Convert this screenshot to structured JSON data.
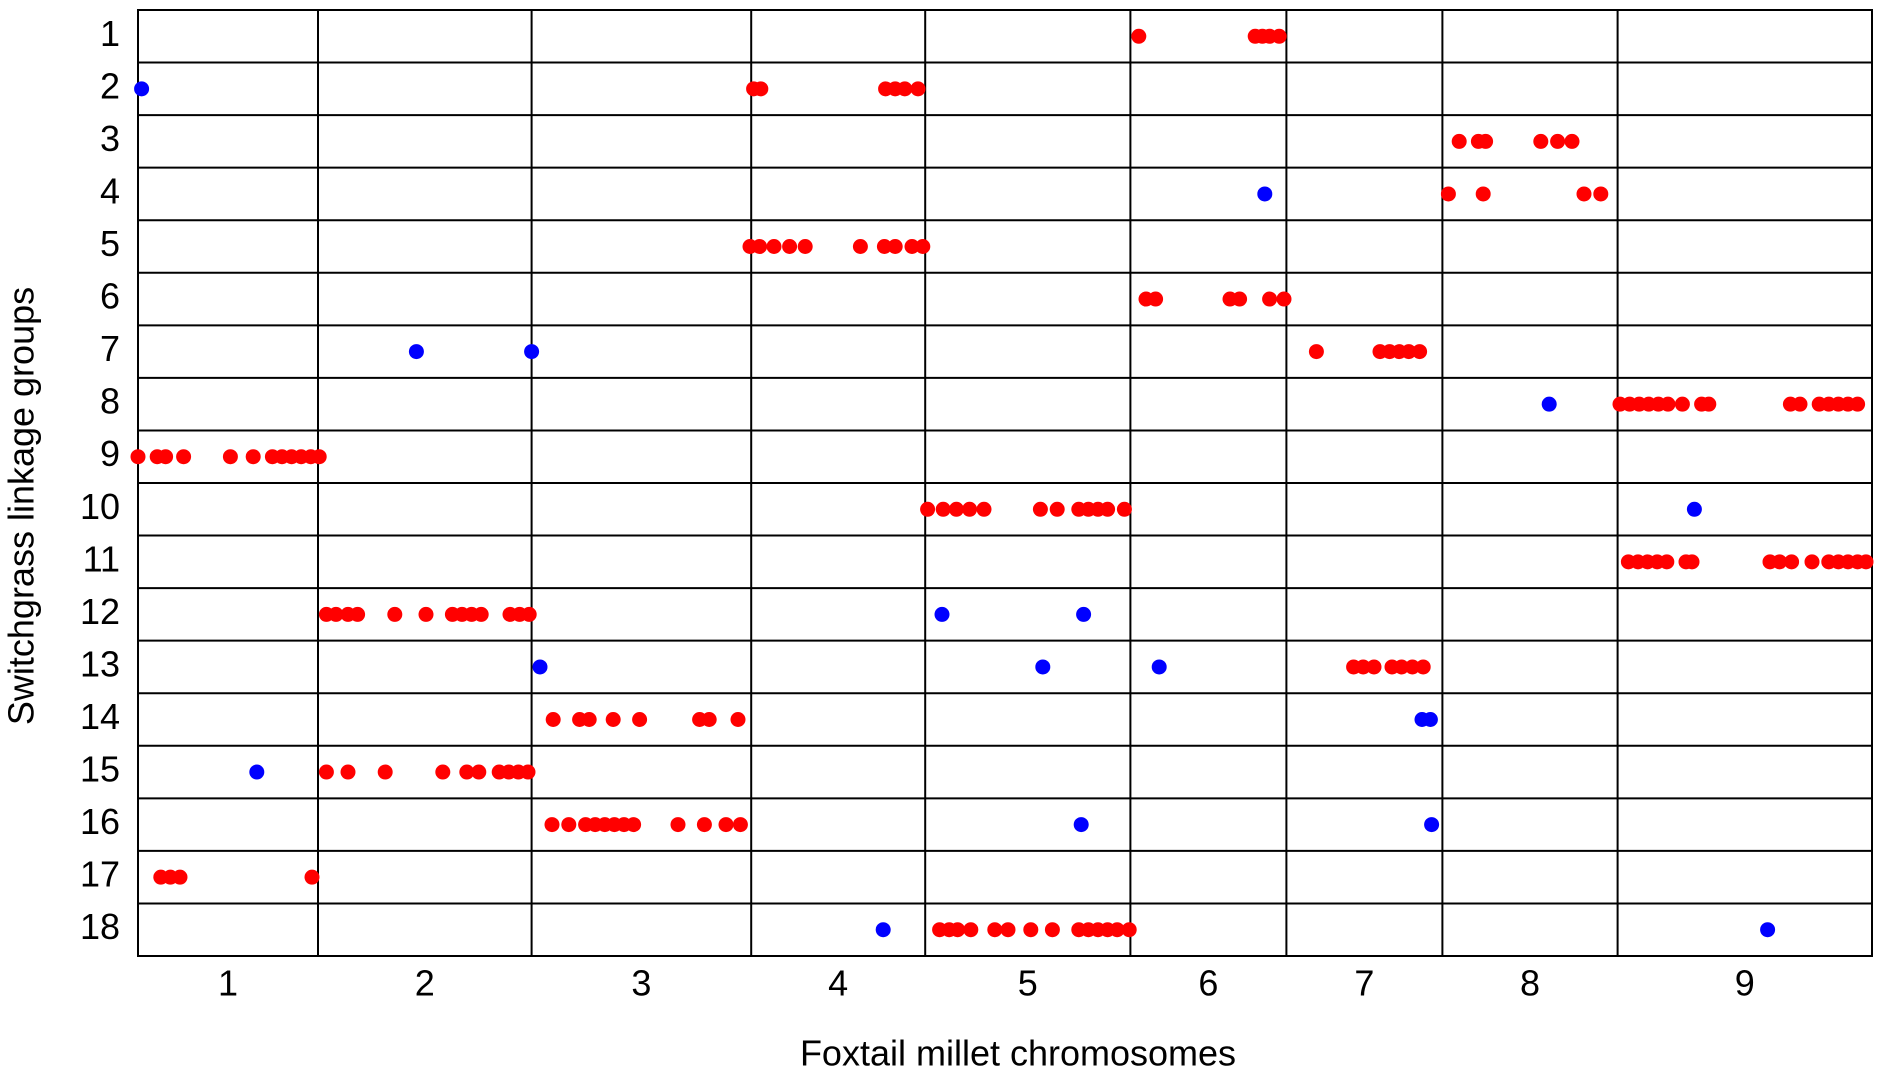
{
  "chart_data": {
    "type": "scatter",
    "xlabel": "Foxtail millet chromosomes",
    "ylabel": "Switchgrass linkage groups",
    "categories": [
      "1",
      "2",
      "3",
      "4",
      "5",
      "6",
      "7",
      "8",
      "9"
    ],
    "category_edges": [
      0,
      150,
      328,
      511,
      656,
      827,
      957,
      1087,
      1233,
      1445
    ],
    "xlim": [
      0,
      1445
    ],
    "ylim": [
      18.5,
      0.5
    ],
    "yticks": [
      1,
      2,
      3,
      4,
      5,
      6,
      7,
      8,
      9,
      10,
      11,
      12,
      13,
      14,
      15,
      16,
      17,
      18
    ],
    "series": [
      {
        "color": "#ff0000",
        "x": [
          834,
          931,
          937,
          943,
          951,
          513,
          519,
          623,
          631,
          639,
          650,
          1101,
          1117,
          1123,
          1169,
          1183,
          1195,
          1092,
          1121,
          1205,
          1219,
          510,
          518,
          530,
          543,
          556,
          602,
          622,
          631,
          645,
          654,
          840,
          848,
          910,
          918,
          943,
          955,
          982,
          1035,
          1043,
          1051,
          1059,
          1068,
          1235,
          1243,
          1251,
          1259,
          1267,
          1275,
          1287,
          1303,
          1309,
          1377,
          1385,
          1401,
          1409,
          1417,
          1425,
          1433,
          0,
          16,
          23,
          38,
          77,
          96,
          112,
          120,
          128,
          136,
          144,
          151,
          658,
          671,
          682,
          693,
          705,
          752,
          766,
          784,
          792,
          800,
          808,
          822,
          1242,
          1250,
          1258,
          1266,
          1274,
          1290,
          1295,
          1360,
          1368,
          1378,
          1395,
          1409,
          1417,
          1425,
          1433,
          1440,
          157,
          165,
          175,
          183,
          214,
          240,
          262,
          270,
          278,
          286,
          310,
          318,
          326,
          1013,
          1021,
          1030,
          1045,
          1053,
          1062,
          1071,
          346,
          368,
          376,
          396,
          418,
          468,
          476,
          500,
          157,
          175,
          206,
          254,
          274,
          284,
          301,
          309,
          317,
          325,
          345,
          359,
          373,
          381,
          389,
          397,
          405,
          413,
          450,
          472,
          490,
          502,
          19,
          27,
          35,
          145,
          668,
          676,
          683,
          694,
          714,
          725,
          744,
          762,
          784,
          792,
          800,
          808,
          816,
          826
        ],
        "y": [
          1,
          1,
          1,
          1,
          1,
          2,
          2,
          2,
          2,
          2,
          2,
          3,
          3,
          3,
          3,
          3,
          3,
          4,
          4,
          4,
          4,
          5,
          5,
          5,
          5,
          5,
          5,
          5,
          5,
          5,
          5,
          6,
          6,
          6,
          6,
          6,
          6,
          7,
          7,
          7,
          7,
          7,
          7,
          8,
          8,
          8,
          8,
          8,
          8,
          8,
          8,
          8,
          8,
          8,
          8,
          8,
          8,
          8,
          8,
          9,
          9,
          9,
          9,
          9,
          9,
          9,
          9,
          9,
          9,
          9,
          9,
          10,
          10,
          10,
          10,
          10,
          10,
          10,
          10,
          10,
          10,
          10,
          10,
          11,
          11,
          11,
          11,
          11,
          11,
          11,
          11,
          11,
          11,
          11,
          11,
          11,
          11,
          11,
          11,
          12,
          12,
          12,
          12,
          12,
          12,
          12,
          12,
          12,
          12,
          12,
          12,
          12,
          13,
          13,
          13,
          13,
          13,
          13,
          13,
          14,
          14,
          14,
          14,
          14,
          14,
          14,
          14,
          15,
          15,
          15,
          15,
          15,
          15,
          15,
          15,
          15,
          15,
          16,
          16,
          16,
          16,
          16,
          16,
          16,
          16,
          16,
          16,
          16,
          16,
          17,
          17,
          17,
          17,
          18,
          18,
          18,
          18,
          18,
          18,
          18,
          18,
          18,
          18,
          18,
          18,
          18,
          18
        ]
      },
      {
        "color": "#0000ff",
        "x": [
          3,
          939,
          232,
          328,
          1176,
          1297,
          670,
          788,
          335,
          754,
          851,
          1070,
          1077,
          99,
          786,
          1078,
          621,
          1358
        ],
        "y": [
          2,
          4,
          7,
          7,
          8,
          10,
          12,
          12,
          13,
          13,
          13,
          14,
          14,
          15,
          16,
          16,
          18,
          18
        ]
      }
    ]
  }
}
